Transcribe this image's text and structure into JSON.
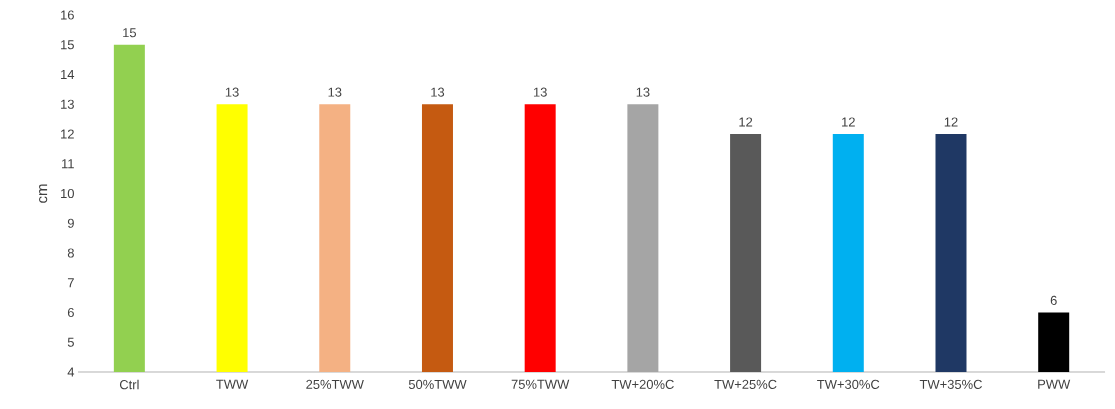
{
  "chart_data": {
    "type": "bar",
    "ylabel": "cm",
    "categories": [
      "Ctrl",
      "TWW",
      "25%TWW",
      "50%TWW",
      "75%TWW",
      "TW+20%C",
      "TW+25%C",
      "TW+30%C",
      "TW+35%C",
      "PWW"
    ],
    "values": [
      15,
      13,
      13,
      13,
      13,
      13,
      12,
      12,
      12,
      6
    ],
    "colors": [
      "#92d050",
      "#ffff00",
      "#f4b183",
      "#c55a11",
      "#ff0000",
      "#a5a5a5",
      "#595959",
      "#00b0f0",
      "#1f3864",
      "#000000"
    ],
    "ylim": [
      4,
      16
    ],
    "yticks": [
      4,
      5,
      6,
      7,
      8,
      9,
      10,
      11,
      12,
      13,
      14,
      15,
      16
    ],
    "data_labels": true,
    "grid": false
  }
}
